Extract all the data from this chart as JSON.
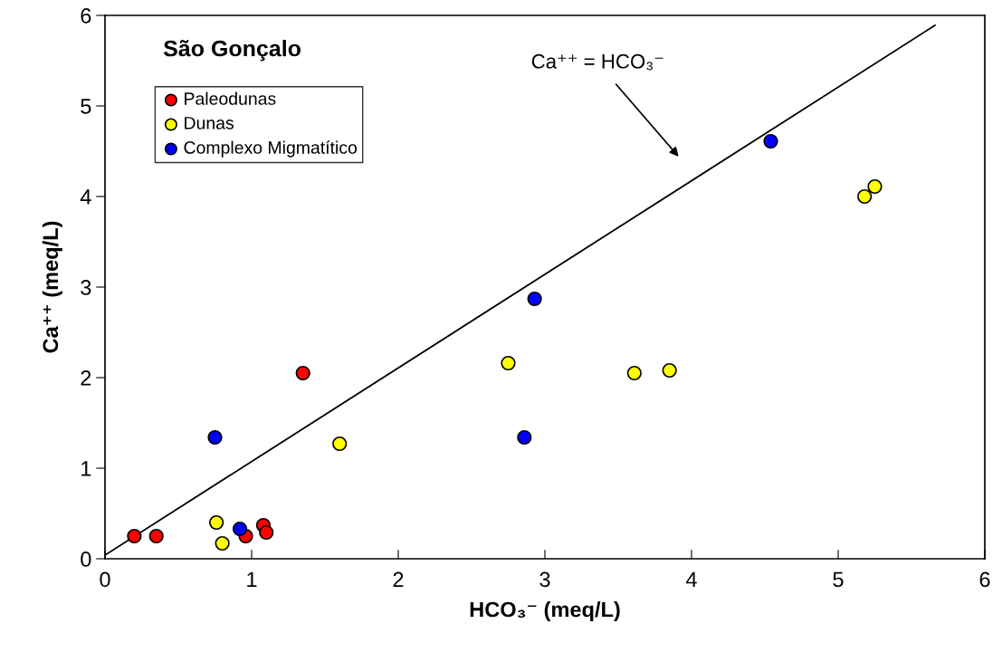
{
  "chart_data": {
    "type": "scatter",
    "title": "São Gonçalo",
    "xlabel": "HCO₃⁻ (meq/L)",
    "ylabel": "Ca⁺⁺ (meq/L)",
    "xlim": [
      0,
      6
    ],
    "ylim": [
      0,
      6
    ],
    "xticks": [
      0,
      1,
      2,
      3,
      4,
      5,
      6
    ],
    "yticks": [
      0,
      1,
      2,
      3,
      4,
      5,
      6
    ],
    "grid": false,
    "legend": "top left",
    "marker": "circle",
    "series": [
      {
        "name": "Paleodunas",
        "color": "#ff0000",
        "x": [
          0.2,
          0.35,
          0.96,
          1.08,
          1.1,
          1.35
        ],
        "values": [
          0.25,
          0.25,
          0.25,
          0.37,
          0.29,
          2.05
        ]
      },
      {
        "name": "Dunas",
        "color": "#ffff00",
        "x": [
          0.76,
          0.8,
          1.6,
          2.75,
          3.61,
          3.85,
          5.18,
          5.25
        ],
        "values": [
          0.4,
          0.17,
          1.27,
          2.16,
          2.05,
          2.08,
          4.0,
          4.11
        ]
      },
      {
        "name": "Complexo Migmatítico",
        "color": "#0000ff",
        "x": [
          0.75,
          0.92,
          2.86,
          2.93,
          4.54
        ],
        "values": [
          1.34,
          0.33,
          1.34,
          2.87,
          4.61
        ]
      },
      {
        "type": "line",
        "color": "#000000",
        "marker": "none",
        "line_style": "solid",
        "x": [
          0,
          5.66
        ],
        "values": [
          0.04,
          5.89
        ]
      }
    ],
    "annotations": [
      "Ca⁺⁺ = HCO₃⁻"
    ]
  }
}
